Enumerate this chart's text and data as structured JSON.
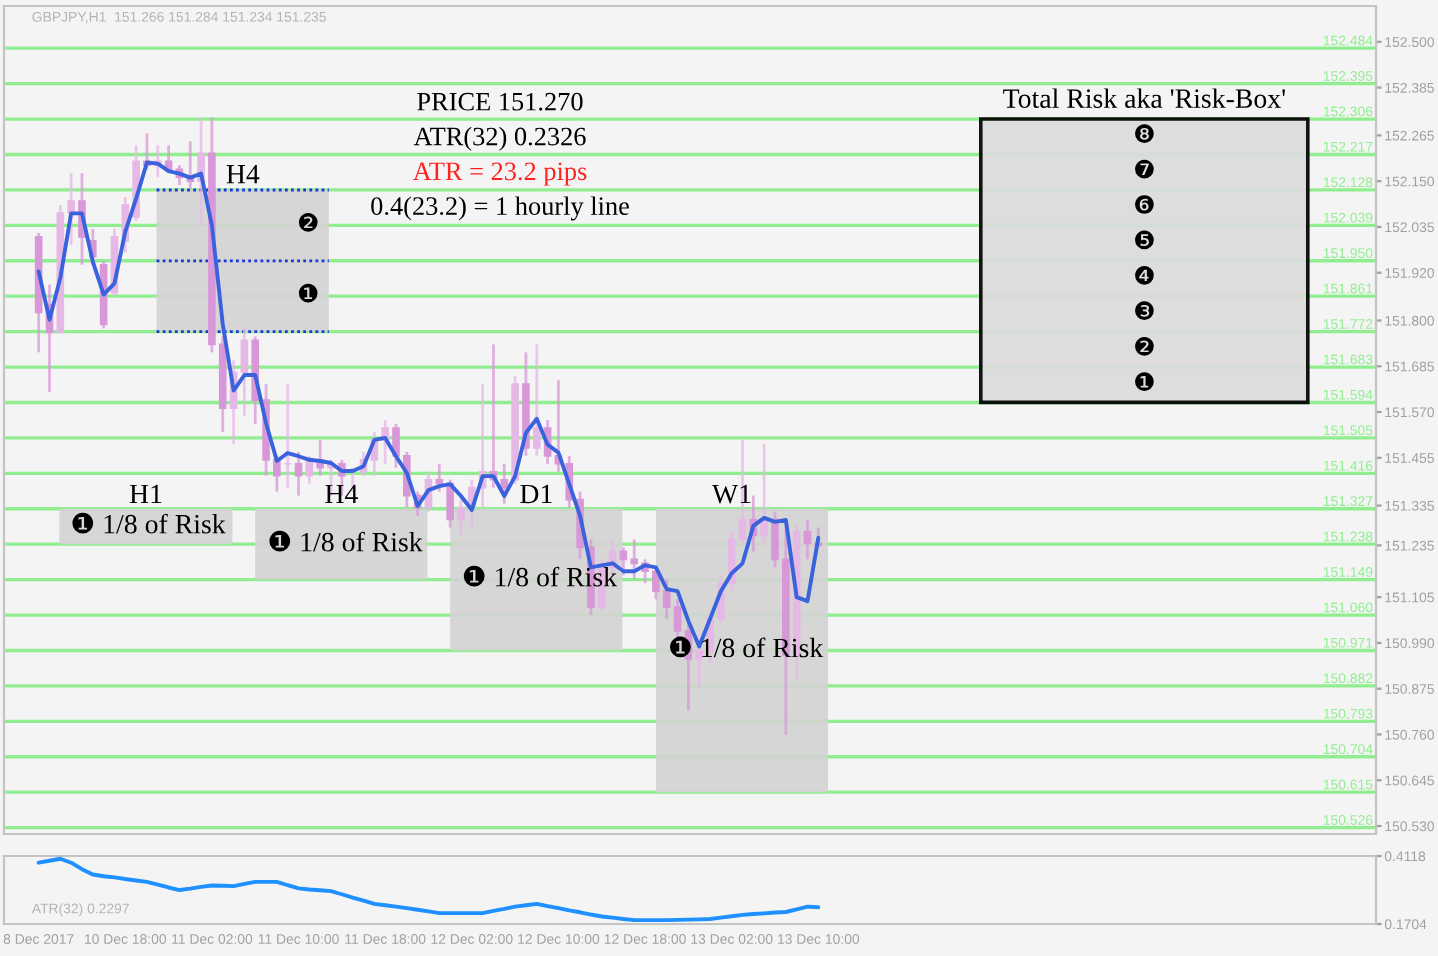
{
  "chart_data": [
    {
      "type": "candlestick",
      "title": "GBPJPY,H1  151.266 151.284 151.234 151.235",
      "tick_labels": "y",
      "categories": [
        null,
        null,
        null,
        null,
        null,
        null,
        null,
        null,
        null,
        null,
        null,
        null,
        null,
        null,
        null,
        null,
        null,
        null,
        null,
        null,
        null,
        null,
        null,
        null,
        null,
        null,
        null,
        null,
        null,
        null,
        null,
        null,
        null,
        null,
        null,
        null,
        null,
        null,
        null,
        null,
        null,
        null,
        null,
        null,
        null,
        null,
        null,
        null,
        null,
        null,
        null,
        null,
        null,
        null,
        null,
        null,
        null,
        null,
        null,
        null,
        null,
        null,
        null,
        null,
        null,
        null,
        null,
        null,
        null,
        null,
        null,
        null,
        null,
        null,
        null,
        null,
        null,
        null,
        null,
        null,
        null,
        null,
        null,
        null,
        null,
        null,
        null,
        null,
        null,
        null,
        null,
        null,
        null,
        null,
        null,
        null,
        null,
        null,
        null,
        null,
        null,
        null,
        null,
        null,
        null,
        null,
        null,
        null,
        null,
        null,
        null,
        null,
        null,
        null,
        null,
        null,
        null,
        null
      ],
      "ylim": [
        150.51,
        152.59
      ],
      "yticks": [
        {
          "value": 152.5,
          "label": "152.500"
        },
        152.385,
        152.265,
        {
          "value": 152.15,
          "label": "152.150"
        },
        152.035,
        {
          "value": 151.92,
          "label": "151.920"
        },
        {
          "value": 151.8,
          "label": "151.800"
        },
        151.685,
        {
          "value": 151.57,
          "label": "151.570"
        },
        151.455,
        151.335,
        151.235,
        151.105,
        {
          "value": 150.99,
          "label": "150.990"
        },
        150.875,
        {
          "value": 150.76,
          "label": "150.760"
        },
        150.645,
        {
          "value": 150.53,
          "label": "150.530"
        }
      ],
      "series": [
        {
          "type": "candlestick",
          "colors": [
            "#d898d8",
            "#d898d8",
            "#e6b8e6",
            "#e6b8e6",
            "#d898d8",
            "#d898d8",
            "#d898d8",
            "#e6b8e6",
            "#e6b8e6",
            "#e6b8e6",
            "#d898d8",
            "#e6b8e6",
            "#d898d8",
            "#d898d8",
            "#d898d8",
            "#e6b8e6",
            "#d898d8",
            "#d898d8",
            "#e6b8e6",
            "#e6b8e6",
            "#d898d8",
            "#d898d8",
            "#d898d8",
            "#e6b8e6",
            "#d898d8",
            "#e6b8e6",
            "#d898d8",
            "#e6b8e6",
            "#d898d8",
            "#e6b8e6",
            "#e6b8e6",
            "#e6b8e6",
            "#e6b8e6",
            "#d898d8",
            "#d898d8",
            "#d898d8",
            "#e6b8e6",
            "#d898d8",
            "#d898d8",
            "#e6b8e6",
            "#e6b8e6",
            "#e6b8e6",
            "#d898d8",
            "#d898d8",
            "#e6b8e6",
            "#d898d8",
            "#e6b8e6",
            "#d898d8",
            "#d898d8",
            "#d898d8",
            "#d898d8",
            "#d898d8",
            "#e6b8e6",
            "#e6b8e6",
            "#d898d8",
            "#d898d8",
            "#d898d8",
            "#d898d8",
            "#d898d8",
            "#d898d8",
            "#d898d8",
            "#e6b8e6",
            "#e6b8e6",
            "#e6b8e6",
            "#e6b8e6",
            "#e6b8e6",
            "#d898d8",
            "#e6b8e6",
            "#d898d8",
            "#d898d8",
            "#e6b8e6",
            "#d898d8",
            "#d898d8",
            null,
            null,
            null,
            null,
            null,
            null,
            null,
            null,
            null,
            null,
            null,
            null,
            null,
            null,
            null,
            null,
            null,
            null,
            null,
            null,
            null,
            null,
            null,
            null,
            null,
            null,
            null,
            null,
            null,
            null,
            null,
            null,
            null,
            null,
            null,
            null,
            null,
            null,
            null,
            null,
            null,
            null,
            null,
            null,
            null
          ],
          "ohlc": [
            [
              152.01,
              152.02,
              151.72,
              151.82
            ],
            [
              151.84,
              151.89,
              151.62,
              151.77
            ],
            [
              151.77,
              152.09,
              151.77,
              152.07
            ],
            [
              152.07,
              152.17,
              151.99,
              152.1
            ],
            [
              152.1,
              152.17,
              151.94,
              152.01
            ],
            [
              152.0,
              152.03,
              151.94,
              151.96
            ],
            [
              151.94,
              151.95,
              151.78,
              151.79
            ],
            [
              151.87,
              152.03,
              151.86,
              152.01
            ],
            [
              152.0,
              152.11,
              151.97,
              152.09
            ],
            [
              152.06,
              152.24,
              152.05,
              152.2
            ],
            [
              152.2,
              152.27,
              152.18,
              152.19
            ],
            [
              152.19,
              152.24,
              152.16,
              152.2
            ],
            [
              152.2,
              152.24,
              152.17,
              152.18
            ],
            [
              152.18,
              152.19,
              152.14,
              152.16
            ],
            [
              152.16,
              152.25,
              152.13,
              152.15
            ],
            [
              152.15,
              152.31,
              152.04,
              152.22
            ],
            [
              152.22,
              152.31,
              151.72,
              151.74
            ],
            [
              151.74,
              151.76,
              151.52,
              151.58
            ],
            [
              151.58,
              151.7,
              151.49,
              151.67
            ],
            [
              151.67,
              151.78,
              151.56,
              151.75
            ],
            [
              151.75,
              151.76,
              151.54,
              151.6
            ],
            [
              151.6,
              151.64,
              151.41,
              151.45
            ],
            [
              151.45,
              151.46,
              151.37,
              151.41
            ],
            [
              151.44,
              151.64,
              151.38,
              151.44
            ],
            [
              151.44,
              151.47,
              151.36,
              151.41
            ],
            [
              151.41,
              151.46,
              151.39,
              151.45
            ],
            [
              151.45,
              151.5,
              151.41,
              151.43
            ],
            [
              151.43,
              151.45,
              151.36,
              151.44
            ],
            [
              151.44,
              151.45,
              151.36,
              151.41
            ],
            [
              151.42,
              151.43,
              151.37,
              151.42
            ],
            [
              151.42,
              151.47,
              151.41,
              151.45
            ],
            [
              151.45,
              151.52,
              151.41,
              151.5
            ],
            [
              151.5,
              151.55,
              151.44,
              151.53
            ],
            [
              151.53,
              151.54,
              151.43,
              151.46
            ],
            [
              151.46,
              151.47,
              151.33,
              151.36
            ],
            [
              151.36,
              151.37,
              151.31,
              151.33
            ],
            [
              151.33,
              151.42,
              151.32,
              151.4
            ],
            [
              151.4,
              151.44,
              151.37,
              151.39
            ],
            [
              151.39,
              151.4,
              151.28,
              151.3
            ],
            [
              151.3,
              151.35,
              151.26,
              151.33
            ],
            [
              151.33,
              151.4,
              151.28,
              151.38
            ],
            [
              151.38,
              151.64,
              151.33,
              151.42
            ],
            [
              151.42,
              151.74,
              151.38,
              151.4
            ],
            [
              151.4,
              151.44,
              151.34,
              151.38
            ],
            [
              151.4,
              151.66,
              151.39,
              151.64
            ],
            [
              151.64,
              151.72,
              151.46,
              151.48
            ],
            [
              151.48,
              151.74,
              151.46,
              151.53
            ],
            [
              151.53,
              151.55,
              151.44,
              151.46
            ],
            [
              151.46,
              151.65,
              151.42,
              151.44
            ],
            [
              151.44,
              151.46,
              151.33,
              151.35
            ],
            [
              151.35,
              151.37,
              151.2,
              151.23
            ],
            [
              151.23,
              151.25,
              151.06,
              151.08
            ],
            [
              151.08,
              151.2,
              151.07,
              151.18
            ],
            [
              151.18,
              151.25,
              151.16,
              151.22
            ],
            [
              151.22,
              151.23,
              151.16,
              151.2
            ],
            [
              151.2,
              151.25,
              151.15,
              151.19
            ],
            [
              151.19,
              151.2,
              151.14,
              151.17
            ],
            [
              151.17,
              151.18,
              151.1,
              151.12
            ],
            [
              151.12,
              151.15,
              151.05,
              151.08
            ],
            [
              151.08,
              151.1,
              150.98,
              151.02
            ],
            [
              151.02,
              151.04,
              150.82,
              150.95
            ],
            [
              150.95,
              151.0,
              150.88,
              150.97
            ],
            [
              150.97,
              151.07,
              150.94,
              151.05
            ],
            [
              151.05,
              151.16,
              151.04,
              151.14
            ],
            [
              151.14,
              151.27,
              151.12,
              151.25
            ],
            [
              151.25,
              151.5,
              151.24,
              151.3
            ],
            [
              151.3,
              151.36,
              151.22,
              151.26
            ],
            [
              151.26,
              151.49,
              151.24,
              151.3
            ],
            [
              151.3,
              151.32,
              151.18,
              151.2
            ],
            [
              151.2,
              151.29,
              150.76,
              150.96
            ],
            [
              150.96,
              151.29,
              150.9,
              151.27
            ],
            [
              151.27,
              151.3,
              151.2,
              151.24
            ],
            [
              151.24,
              151.28,
              151.23,
              151.235
            ],
            null,
            null,
            null,
            null,
            null,
            null,
            null,
            null,
            null,
            null,
            null,
            null,
            null,
            null,
            null,
            null,
            null,
            null,
            null,
            null,
            null,
            null,
            null,
            null,
            null,
            null,
            null,
            null,
            null,
            null,
            null,
            null,
            null,
            null,
            null,
            null,
            null,
            null,
            null,
            null,
            null,
            null,
            null,
            null,
            null
          ]
        },
        {
          "type": "line",
          "color": "#3a62dc",
          "values": [
            151.923,
            151.802,
            151.907,
            152.069,
            152.069,
            151.948,
            151.865,
            151.893,
            152.023,
            152.106,
            152.197,
            152.194,
            152.175,
            152.169,
            152.159,
            152.169,
            152.039,
            151.791,
            151.624,
            151.663,
            151.663,
            151.542,
            151.447,
            151.467,
            151.459,
            151.45,
            151.447,
            151.442,
            151.422,
            151.422,
            151.434,
            151.5,
            151.505,
            151.459,
            151.417,
            151.334,
            151.374,
            151.384,
            151.389,
            151.359,
            151.324,
            151.409,
            151.409,
            151.359,
            151.409,
            151.518,
            151.553,
            151.488,
            151.468,
            151.389,
            151.309,
            151.18,
            151.185,
            151.19,
            151.17,
            151.17,
            151.185,
            151.18,
            151.125,
            151.12,
            151.045,
            150.981,
            151.05,
            151.12,
            151.165,
            151.19,
            151.284,
            151.304,
            151.294,
            151.299,
            151.105,
            151.095,
            151.254,
            null,
            null,
            null,
            null,
            null,
            null,
            null,
            null,
            null,
            null,
            null,
            null,
            null,
            null,
            null,
            null,
            null,
            null,
            null,
            null,
            null,
            null,
            null,
            null,
            null,
            null,
            null,
            null,
            null,
            null,
            null,
            null,
            null,
            null,
            null,
            null,
            null,
            null,
            null,
            null,
            null,
            null,
            null,
            null,
            null
          ]
        }
      ],
      "ref_lines": [
        {
          "axis": "y",
          "value": 152.484,
          "label": "152.484",
          "color": "#90ee90"
        },
        {
          "axis": "y",
          "value": 152.395,
          "label": "152.395",
          "color": "#90ee90"
        },
        {
          "axis": "y",
          "value": 152.306,
          "label": "152.306",
          "color": "#90ee90"
        },
        {
          "axis": "y",
          "value": 152.217,
          "label": "152.217",
          "color": "#90ee90"
        },
        {
          "axis": "y",
          "value": 152.128,
          "label": "152.128",
          "color": "#90ee90"
        },
        {
          "axis": "y",
          "value": 152.039,
          "label": "152.039",
          "color": "#90ee90"
        },
        {
          "axis": "y",
          "value": 151.95,
          "label": "151.950",
          "color": "#90ee90"
        },
        {
          "axis": "y",
          "value": 151.861,
          "label": "151.861",
          "color": "#90ee90"
        },
        {
          "axis": "y",
          "value": 151.772,
          "label": "151.772",
          "color": "#90ee90"
        },
        {
          "axis": "y",
          "value": 151.683,
          "label": "151.683",
          "color": "#90ee90"
        },
        {
          "axis": "y",
          "value": 151.594,
          "label": "151.594",
          "color": "#90ee90"
        },
        {
          "axis": "y",
          "value": 151.505,
          "label": "151.505",
          "color": "#90ee90"
        },
        {
          "axis": "y",
          "value": 151.416,
          "label": "151.416",
          "color": "#90ee90"
        },
        {
          "axis": "y",
          "value": 151.327,
          "label": "151.327",
          "color": "#90ee90"
        },
        {
          "axis": "y",
          "value": 151.238,
          "label": "151.238",
          "color": "#90ee90"
        },
        {
          "axis": "y",
          "value": 151.149,
          "label": "151.149",
          "color": "#90ee90"
        },
        {
          "axis": "y",
          "value": 151.06,
          "label": "151.060",
          "color": "#90ee90"
        },
        {
          "axis": "y",
          "value": 150.971,
          "label": "150.971",
          "color": "#90ee90"
        },
        {
          "axis": "y",
          "value": 150.882,
          "label": "150.882",
          "color": "#90ee90"
        },
        {
          "axis": "y",
          "value": 150.793,
          "label": "150.793",
          "color": "#90ee90"
        },
        {
          "axis": "y",
          "value": 150.704,
          "label": "150.704",
          "color": "#90ee90"
        },
        {
          "axis": "y",
          "value": 150.615,
          "label": "150.615",
          "color": "#90ee90"
        },
        {
          "axis": "y",
          "value": 150.526,
          "label": "150.526",
          "color": "#90ee90"
        }
      ],
      "annotations": [
        "PRICE 151.270",
        "ATR(32) 0.2326",
        "ATR = 23.2 pips",
        "0.4(23.2) = 1 hourly line",
        "Total Risk aka 'Risk-Box'",
        "❽",
        "❼",
        "❻",
        "❺",
        "❹",
        "❸",
        "❷",
        "❶",
        "H4",
        "❷",
        "❶",
        "H1",
        "❶ 1/8 of Risk",
        "H4",
        "❶ 1/8 of Risk",
        "D1",
        "❶ 1/8 of Risk",
        "W1",
        "❶ 1/8 of Risk"
      ]
    },
    {
      "type": "line",
      "title": "ATR(32) 0.2297",
      "categories": [
        "8 Dec 2017",
        null,
        null,
        null,
        null,
        null,
        null,
        null,
        "10 Dec 18:00",
        null,
        null,
        null,
        null,
        null,
        null,
        null,
        "11 Dec 02:00",
        null,
        null,
        null,
        null,
        null,
        null,
        null,
        "11 Dec 10:00",
        null,
        null,
        null,
        null,
        null,
        null,
        null,
        "11 Dec 18:00",
        null,
        null,
        null,
        null,
        null,
        null,
        null,
        "12 Dec 02:00",
        null,
        null,
        null,
        null,
        null,
        null,
        null,
        "12 Dec 10:00",
        null,
        null,
        null,
        null,
        null,
        null,
        null,
        "12 Dec 18:00",
        null,
        null,
        null,
        null,
        null,
        null,
        null,
        "13 Dec 02:00",
        null,
        null,
        null,
        null,
        null,
        null,
        null,
        "13 Dec 10:00",
        null,
        null,
        null,
        null,
        null,
        null,
        null,
        null,
        null,
        null,
        null,
        null,
        null,
        null,
        null,
        null,
        null,
        null,
        null,
        null,
        null,
        null,
        null,
        null,
        null,
        null,
        null,
        null,
        null,
        null,
        null,
        null,
        null,
        null,
        null,
        null,
        null,
        null,
        null,
        null,
        null,
        null,
        null,
        null,
        null
      ],
      "ylim": [
        0.1704,
        0.4118
      ],
      "yticks": [
        0.1704,
        0.4118
      ],
      "series": [
        {
          "color": "#1e90ff",
          "values": [
            0.388,
            0.395,
            0.402,
            0.388,
            0.365,
            0.346,
            0.34,
            0.336,
            0.33,
            0.325,
            0.32,
            0.31,
            0.3,
            0.291,
            0.296,
            0.302,
            0.307,
            0.306,
            0.305,
            0.313,
            0.32,
            0.32,
            0.32,
            0.308,
            0.297,
            0.293,
            0.29,
            0.287,
            0.276,
            0.264,
            0.253,
            0.242,
            0.237,
            0.232,
            0.227,
            0.221,
            0.215,
            0.209,
            0.209,
            0.209,
            0.209,
            0.209,
            0.217,
            0.224,
            0.232,
            0.237,
            0.242,
            0.234,
            0.227,
            0.219,
            0.212,
            0.204,
            0.197,
            0.193,
            0.188,
            0.184,
            0.184,
            0.184,
            0.184,
            0.185,
            0.186,
            0.187,
            0.188,
            0.193,
            0.198,
            0.203,
            0.206,
            0.208,
            0.211,
            0.213,
            0.222,
            0.232,
            0.23,
            null,
            null,
            null,
            null,
            null,
            null,
            null,
            null,
            null,
            null,
            null,
            null,
            null,
            null,
            null,
            null,
            null,
            null,
            null,
            null,
            null,
            null,
            null,
            null,
            null,
            null,
            null,
            null,
            null,
            null,
            null,
            null,
            null,
            null,
            null,
            null,
            null,
            null,
            null,
            null,
            null,
            null,
            null,
            null,
            null
          ]
        }
      ]
    }
  ]
}
